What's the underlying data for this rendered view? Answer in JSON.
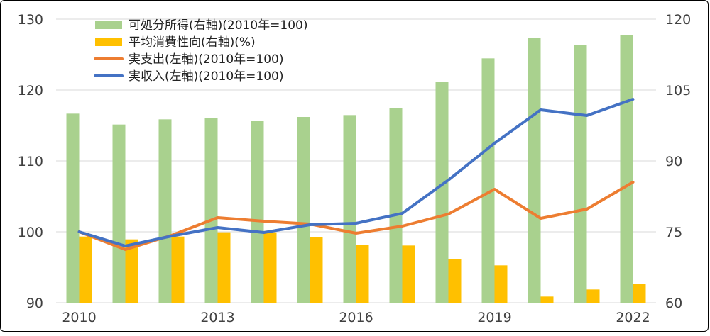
{
  "chart_data": {
    "type": "bar+line",
    "x_tick_labels": [
      "2010",
      "2013",
      "2016",
      "2019",
      "2022"
    ],
    "years": [
      2010,
      2011,
      2012,
      2013,
      2014,
      2015,
      2016,
      2017,
      2018,
      2019,
      2020,
      2021,
      2022
    ],
    "left_axis": {
      "min": 90,
      "max": 130,
      "ticks": [
        "90",
        "100",
        "110",
        "120",
        "130"
      ]
    },
    "right_axis": {
      "min": 60,
      "max": 120,
      "ticks": [
        "60",
        "75",
        "90",
        "105",
        "120"
      ]
    },
    "grid": true,
    "legend_position": "top-left",
    "series": [
      {
        "name": "可処分所得(右軸)(2010年=100)",
        "kind": "bar",
        "axis": "right",
        "color": "#a9d18e",
        "values": [
          100.0,
          97.7,
          98.8,
          99.1,
          98.5,
          99.3,
          99.7,
          101.1,
          106.8,
          111.7,
          116.1,
          114.6,
          116.6
        ]
      },
      {
        "name": "平均消費性向(右軸)(%)",
        "kind": "bar",
        "axis": "right",
        "color": "#ffc000",
        "values": [
          74.0,
          73.4,
          74.0,
          74.9,
          74.9,
          73.8,
          72.2,
          72.1,
          69.3,
          67.9,
          61.3,
          62.8,
          64.0
        ]
      },
      {
        "name": "実支出(左軸)(2010年=100)",
        "kind": "line",
        "axis": "left",
        "color": "#ed7d31",
        "values": [
          100.0,
          97.5,
          99.5,
          102.0,
          101.5,
          101.1,
          99.8,
          100.8,
          102.5,
          106.0,
          101.9,
          103.2,
          107.0
        ]
      },
      {
        "name": "実収入(左軸)(2010年=100)",
        "kind": "line",
        "axis": "left",
        "color": "#4472c4",
        "values": [
          100.0,
          98.0,
          99.4,
          100.6,
          99.9,
          101.0,
          101.2,
          102.6,
          107.3,
          112.5,
          117.2,
          116.4,
          118.7
        ]
      }
    ]
  }
}
